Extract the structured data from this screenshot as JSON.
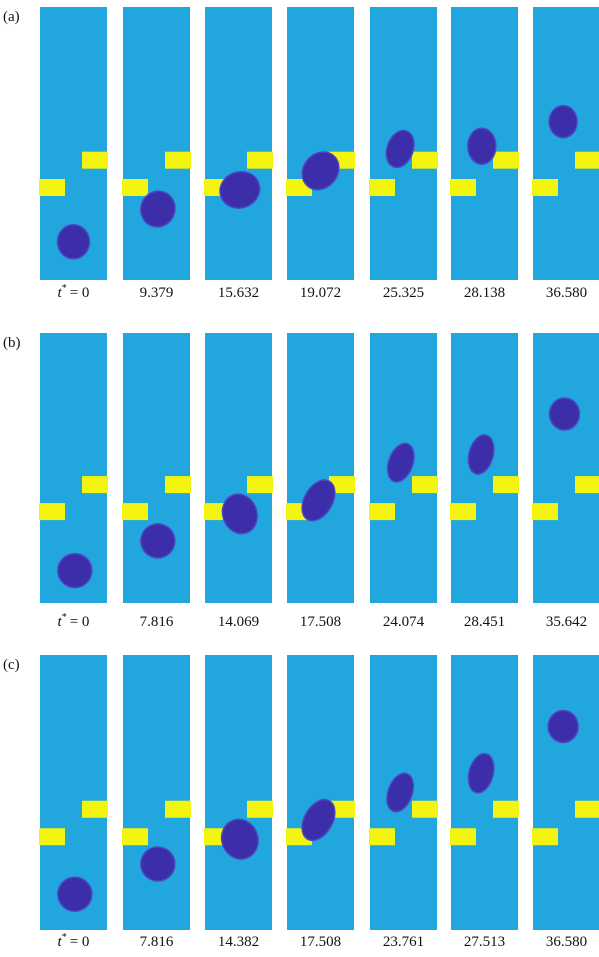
{
  "panels": [
    {
      "label": "(a)",
      "first_label": {
        "symbol": "t",
        "superscript": "*",
        "rest": "= 0"
      },
      "times": [
        "9.379",
        "15.632",
        "19.072",
        "25.325",
        "28.138",
        "36.580"
      ]
    },
    {
      "label": "(b)",
      "first_label": {
        "symbol": "t",
        "superscript": "*",
        "rest": "= 0"
      },
      "times": [
        "7.816",
        "14.069",
        "17.508",
        "24.074",
        "28.451",
        "35.642"
      ]
    },
    {
      "label": "(c)",
      "first_label": {
        "symbol": "t",
        "superscript": "*",
        "rest": "= 0"
      },
      "times": [
        "7.816",
        "14.382",
        "17.508",
        "23.761",
        "27.513",
        "36.580"
      ]
    }
  ]
}
